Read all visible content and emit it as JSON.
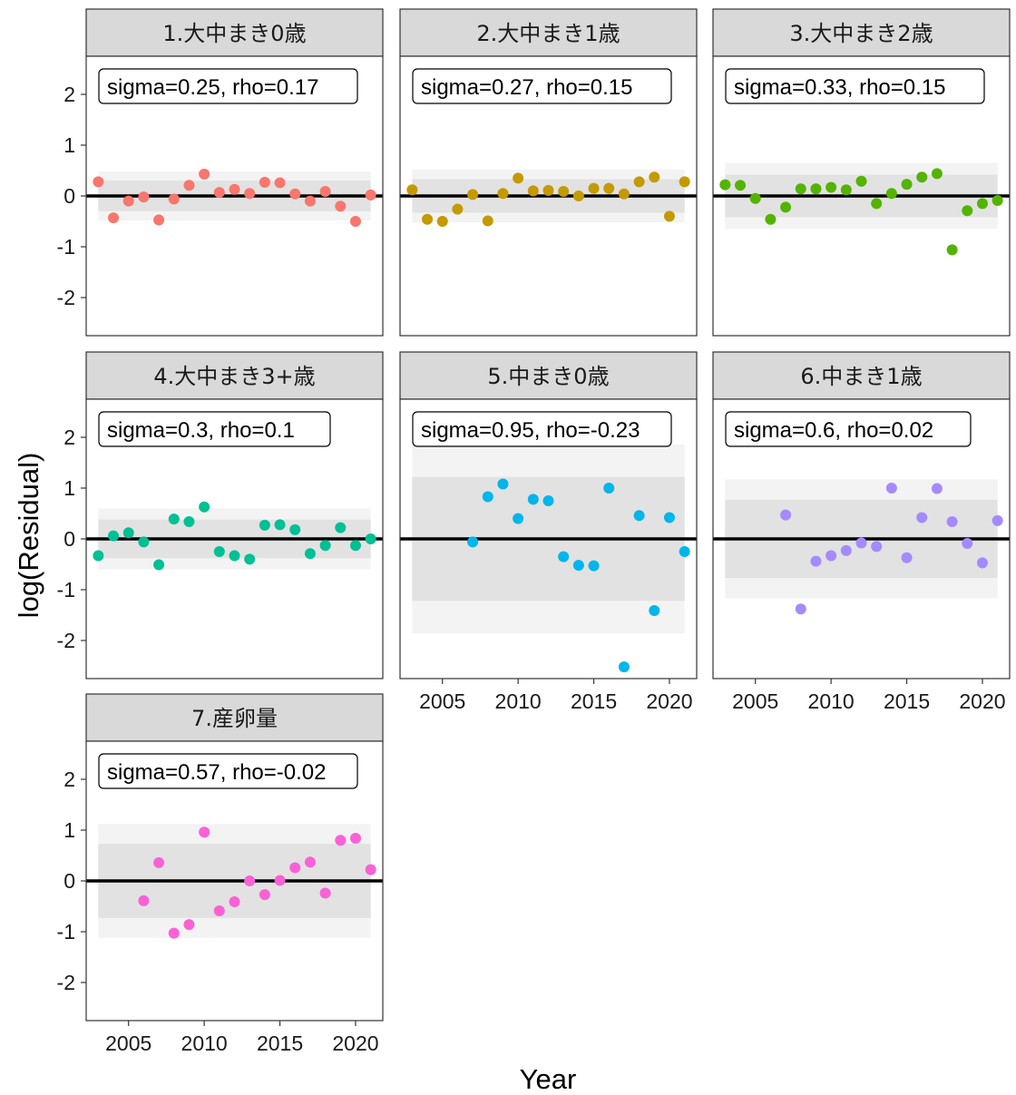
{
  "chart_data": {
    "type": "scatter",
    "xlabel": "Year",
    "ylabel": "log(Residual)",
    "xlim": [
      2002.2,
      2021.8
    ],
    "ylim": [
      -2.75,
      2.75
    ],
    "x_ticks": [
      2005,
      2010,
      2015,
      2020
    ],
    "y_ticks": [
      -2,
      -1,
      0,
      1,
      2
    ],
    "y_tick_labels": [
      "-2",
      "-1",
      "0",
      "1",
      "2"
    ],
    "grid": false,
    "reference_line": 0,
    "panels": [
      {
        "strip": "1.大中まき0歳",
        "label": "sigma=0.25, rho=0.17",
        "color": "#F8766D",
        "band_inner": 0.3,
        "band_outer": 0.48,
        "x": [
          2003,
          2004,
          2005,
          2006,
          2007,
          2008,
          2009,
          2010,
          2011,
          2012,
          2013,
          2014,
          2015,
          2016,
          2017,
          2018,
          2019,
          2020,
          2021
        ],
        "y": [
          0.28,
          -0.43,
          -0.1,
          -0.02,
          -0.47,
          -0.06,
          0.21,
          0.43,
          0.07,
          0.13,
          0.05,
          0.27,
          0.26,
          0.04,
          -0.1,
          0.09,
          -0.2,
          -0.5,
          0.02
        ]
      },
      {
        "strip": "2.大中まき1歳",
        "label": "sigma=0.27, rho=0.15",
        "color": "#C49A00",
        "band_inner": 0.33,
        "band_outer": 0.52,
        "x": [
          2003,
          2004,
          2005,
          2006,
          2007,
          2008,
          2009,
          2010,
          2011,
          2012,
          2013,
          2014,
          2015,
          2016,
          2017,
          2018,
          2019,
          2020,
          2021
        ],
        "y": [
          0.12,
          -0.46,
          -0.5,
          -0.26,
          0.03,
          -0.49,
          0.05,
          0.35,
          0.1,
          0.11,
          0.09,
          0.0,
          0.15,
          0.15,
          0.04,
          0.28,
          0.37,
          -0.4,
          0.28
        ]
      },
      {
        "strip": "3.大中まき2歳",
        "label": "sigma=0.33, rho=0.15",
        "color": "#53B400",
        "band_inner": 0.42,
        "band_outer": 0.65,
        "x": [
          2003,
          2004,
          2005,
          2006,
          2007,
          2008,
          2009,
          2010,
          2011,
          2012,
          2013,
          2014,
          2015,
          2016,
          2017,
          2018,
          2019,
          2020,
          2021
        ],
        "y": [
          0.22,
          0.21,
          -0.05,
          -0.46,
          -0.22,
          0.14,
          0.14,
          0.17,
          0.12,
          0.29,
          -0.15,
          0.05,
          0.23,
          0.37,
          0.44,
          -1.06,
          -0.29,
          -0.15,
          -0.09
        ]
      },
      {
        "strip": "4.大中まき3+歳",
        "label": "sigma=0.3, rho=0.1",
        "color": "#00C094",
        "band_inner": 0.38,
        "band_outer": 0.6,
        "x": [
          2003,
          2004,
          2005,
          2006,
          2007,
          2008,
          2009,
          2010,
          2011,
          2012,
          2013,
          2014,
          2015,
          2016,
          2017,
          2018,
          2019,
          2020,
          2021
        ],
        "y": [
          -0.33,
          0.06,
          0.12,
          -0.06,
          -0.51,
          0.39,
          0.34,
          0.63,
          -0.25,
          -0.33,
          -0.4,
          0.27,
          0.28,
          0.18,
          -0.29,
          -0.13,
          0.22,
          -0.13,
          0.0
        ]
      },
      {
        "strip": "5.中まき0歳",
        "label": "sigma=0.95, rho=-0.23",
        "color": "#00B6EB",
        "band_inner": 1.22,
        "band_outer": 1.86,
        "x": [
          2007,
          2008,
          2009,
          2010,
          2011,
          2012,
          2013,
          2014,
          2015,
          2016,
          2017,
          2018,
          2019,
          2020,
          2021
        ],
        "y": [
          -0.06,
          0.83,
          1.08,
          0.4,
          0.78,
          0.75,
          -0.35,
          -0.52,
          -0.53,
          1.0,
          -2.52,
          0.46,
          -1.41,
          0.42,
          -0.25
        ]
      },
      {
        "strip": "6.中まき1歳",
        "label": "sigma=0.6, rho=0.02",
        "color": "#A58AFF",
        "band_inner": 0.77,
        "band_outer": 1.17,
        "x": [
          2007,
          2008,
          2009,
          2010,
          2011,
          2012,
          2013,
          2014,
          2015,
          2016,
          2017,
          2018,
          2019,
          2020,
          2021
        ],
        "y": [
          0.47,
          -1.38,
          -0.44,
          -0.33,
          -0.23,
          -0.08,
          -0.15,
          1.0,
          -0.37,
          0.42,
          0.99,
          0.34,
          -0.09,
          -0.47,
          0.36
        ]
      },
      {
        "strip": "7.産卵量",
        "label": "sigma=0.57, rho=-0.02",
        "color": "#FB61D7",
        "band_inner": 0.73,
        "band_outer": 1.12,
        "x": [
          2006,
          2007,
          2008,
          2009,
          2010,
          2011,
          2012,
          2013,
          2014,
          2015,
          2016,
          2017,
          2018,
          2019,
          2020,
          2021
        ],
        "y": [
          -0.39,
          0.36,
          -1.03,
          -0.86,
          0.96,
          -0.59,
          -0.41,
          0.0,
          -0.27,
          0.01,
          0.26,
          0.37,
          -0.24,
          0.8,
          0.84,
          0.22
        ]
      }
    ]
  }
}
